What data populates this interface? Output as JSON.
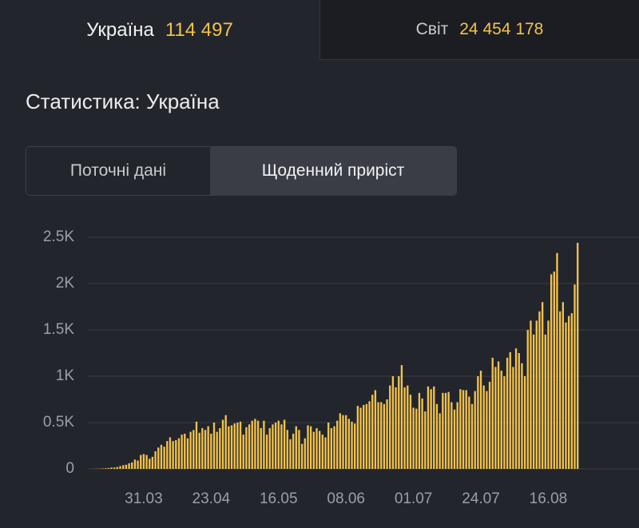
{
  "tabs": [
    {
      "label": "Україна",
      "value": "114 497"
    },
    {
      "label": "Світ",
      "value": "24 454 178"
    }
  ],
  "heading": "Статистика: Україна",
  "toggle": [
    "Поточні дані",
    "Щоденний приріст"
  ],
  "chart_data": {
    "type": "bar",
    "color": "#f3c24a",
    "grid": true,
    "ylim": [
      0,
      2500
    ],
    "yticks": [
      0,
      {
        "value": 500,
        "label": "0.5K"
      },
      {
        "value": 1000,
        "label": "1K"
      },
      {
        "value": 1500,
        "label": "1.5K"
      },
      {
        "value": 2000,
        "label": "2K"
      },
      {
        "value": 2500,
        "label": "2.5K"
      }
    ],
    "categories": [
      null,
      null,
      null,
      null,
      null,
      null,
      null,
      null,
      null,
      null,
      null,
      null,
      null,
      null,
      null,
      null,
      null,
      null,
      "31.03",
      null,
      null,
      null,
      null,
      null,
      null,
      null,
      null,
      null,
      null,
      null,
      null,
      null,
      null,
      null,
      null,
      null,
      null,
      null,
      null,
      null,
      null,
      "23.04",
      null,
      null,
      null,
      null,
      null,
      null,
      null,
      null,
      null,
      null,
      null,
      null,
      null,
      null,
      null,
      null,
      null,
      null,
      null,
      null,
      null,
      null,
      "16.05",
      null,
      null,
      null,
      null,
      null,
      null,
      null,
      null,
      null,
      null,
      null,
      null,
      null,
      null,
      null,
      null,
      null,
      null,
      null,
      null,
      null,
      null,
      "08.06",
      null,
      null,
      null,
      null,
      null,
      null,
      null,
      null,
      null,
      null,
      null,
      null,
      null,
      null,
      null,
      null,
      null,
      null,
      null,
      null,
      null,
      null,
      "01.07",
      null,
      null,
      null,
      null,
      null,
      null,
      null,
      null,
      null,
      null,
      null,
      null,
      null,
      null,
      null,
      null,
      null,
      null,
      null,
      null,
      null,
      null,
      "24.07",
      null,
      null,
      null,
      null,
      null,
      null,
      null,
      null,
      null,
      null,
      null,
      null,
      null,
      null,
      null,
      null,
      null,
      null,
      null,
      null,
      null,
      null,
      "16.08",
      null,
      null,
      null,
      null,
      null,
      null,
      null,
      null,
      null,
      null
    ],
    "values": [
      0,
      1,
      2,
      3,
      5,
      7,
      10,
      15,
      15,
      20,
      30,
      40,
      45,
      60,
      70,
      100,
      90,
      150,
      160,
      150,
      110,
      130,
      190,
      230,
      260,
      240,
      300,
      340,
      300,
      310,
      330,
      370,
      380,
      330,
      400,
      420,
      510,
      390,
      440,
      420,
      460,
      380,
      500,
      400,
      440,
      530,
      580,
      460,
      470,
      490,
      500,
      510,
      370,
      450,
      480,
      520,
      540,
      520,
      440,
      520,
      370,
      440,
      480,
      500,
      520,
      480,
      530,
      420,
      320,
      380,
      460,
      420,
      270,
      330,
      470,
      460,
      400,
      440,
      410,
      370,
      340,
      500,
      440,
      460,
      520,
      600,
      580,
      580,
      540,
      510,
      490,
      680,
      660,
      690,
      700,
      730,
      800,
      850,
      720,
      720,
      700,
      750,
      900,
      1000,
      880,
      1000,
      1120,
      880,
      900,
      800,
      660,
      650,
      820,
      760,
      620,
      890,
      860,
      890,
      700,
      600,
      820,
      820,
      830,
      720,
      640,
      720,
      860,
      850,
      850,
      780,
      700,
      840,
      1000,
      1060,
      900,
      840,
      940,
      1200,
      1100,
      1160,
      1060,
      1000,
      1200,
      1260,
      1100,
      1300,
      1250,
      1140,
      1000,
      1500,
      1600,
      1450,
      1600,
      1700,
      1800,
      1450,
      1600,
      2100,
      2130,
      2330,
      1700,
      1800,
      1580,
      1650,
      1680,
      1990,
      2440
    ]
  }
}
